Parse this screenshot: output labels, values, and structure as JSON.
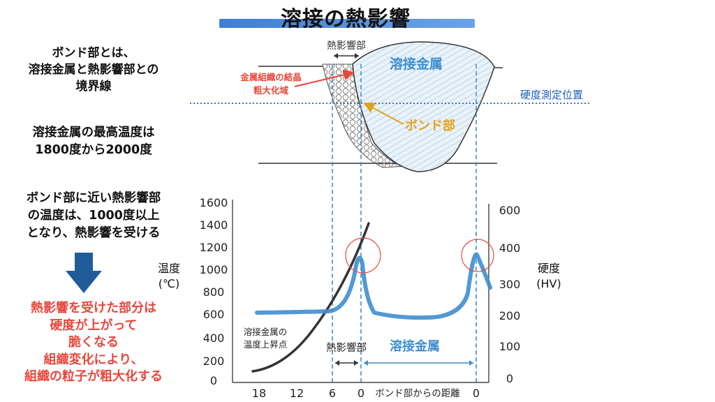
{
  "title": "溶接の熱影響",
  "left_panel": {
    "block1": [
      "ボンド部とは、",
      "溶接金属と熱影響部との",
      "境界線"
    ],
    "block2": [
      "溶接金属の最高温度は",
      "1800度から2000度"
    ],
    "block3": [
      "ボンド部に近い熱影響部",
      "の温度は、1000度以上",
      "となり、熱影響を受ける"
    ],
    "block4": [
      "熱影響を受けた部分は",
      "硬度が上がって",
      "脆くなる",
      "組織変化により、",
      "組織の粒子が粗大化する"
    ]
  },
  "cross_section": {
    "haz_label": "熱影響部",
    "weld_metal_label": "溶接金属",
    "grain_label": [
      "金属組織の結晶",
      "粗大化域"
    ],
    "hardness_line_label": "硬度測定位置",
    "bond_label": "ボンド部"
  },
  "graph": {
    "left_axis_title": [
      "温度",
      "(℃)"
    ],
    "left_ticks": [
      "1600",
      "1400",
      "1200",
      "1000",
      "800",
      "600",
      "400",
      "200",
      "0"
    ],
    "right_axis_title": [
      "硬度",
      "(HV)"
    ],
    "right_ticks": [
      "600",
      "400",
      "300",
      "200",
      "100",
      "0"
    ],
    "x_ticks": [
      "18",
      "12",
      "6",
      "0",
      "0"
    ],
    "x_axis_title": "ボンド部からの距離",
    "curve_label": [
      "溶接金属の",
      "温度上昇点"
    ],
    "haz_label": "熱影響部",
    "weld_metal_label": "溶接金属"
  },
  "colors": {
    "accent_blue": "#3e8ecf",
    "red": "#e8473c",
    "orange": "#e0a31f",
    "dark_blue": "#1f5c99"
  }
}
